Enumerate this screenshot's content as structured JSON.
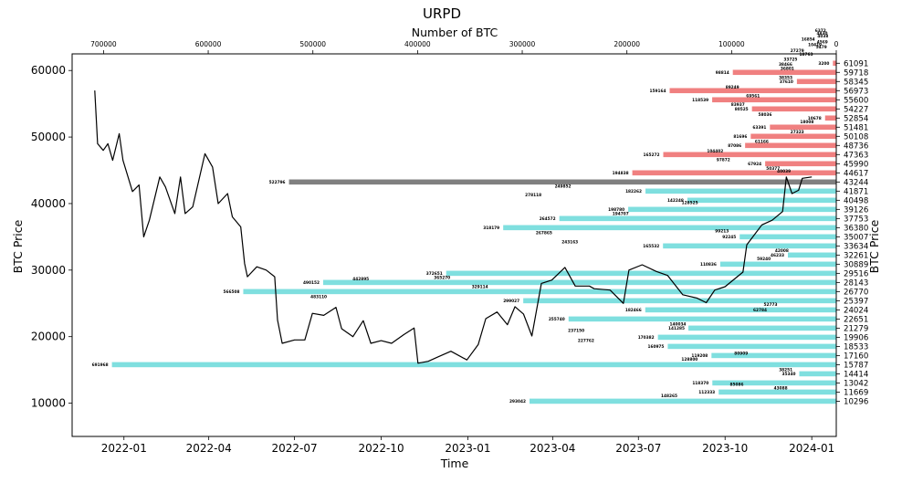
{
  "chart_data": {
    "type": "line",
    "title": "URPD",
    "top_xlabel": "Number of BTC",
    "xlabel": "Time",
    "ylabel_left": "BTC Price",
    "ylabel_right": "BTC Price",
    "ylim": [
      5000,
      62500
    ],
    "yticks": [
      10000,
      20000,
      30000,
      40000,
      50000,
      60000
    ],
    "ytick_labels": [
      "10000",
      "20000",
      "30000",
      "40000",
      "50000",
      "60000"
    ],
    "xtick_dates": [
      "2022-01-01",
      "2022-04-01",
      "2022-07-01",
      "2022-10-01",
      "2023-01-01",
      "2023-04-01",
      "2023-07-01",
      "2023-10-01",
      "2024-01-01"
    ],
    "xtick_labels": [
      "2022-01",
      "2022-04",
      "2022-07",
      "2022-10",
      "2023-01",
      "2023-04",
      "2023-07",
      "2023-10",
      "2024-01"
    ],
    "xlim": [
      "2021-11-07",
      "2024-01-27"
    ],
    "top_xlim": [
      730000,
      0
    ],
    "top_xticks": [
      700000,
      600000,
      500000,
      400000,
      300000,
      200000,
      100000,
      0
    ],
    "top_xtick_labels": [
      "700000",
      "600000",
      "500000",
      "400000",
      "300000",
      "200000",
      "100000",
      "0"
    ],
    "colors": {
      "price_line": "#000000",
      "above_price": "#f08080",
      "below_price": "#7fdfdf",
      "current_bucket": "#808080"
    },
    "current_price_level": 43244,
    "price_series": {
      "name": "BTC Price",
      "points": [
        [
          "2021-12-01",
          57000
        ],
        [
          "2021-12-04",
          49000
        ],
        [
          "2021-12-10",
          48000
        ],
        [
          "2021-12-15",
          49000
        ],
        [
          "2021-12-20",
          46500
        ],
        [
          "2021-12-27",
          50500
        ],
        [
          "2021-12-31",
          46500
        ],
        [
          "2022-01-10",
          41800
        ],
        [
          "2022-01-17",
          42800
        ],
        [
          "2022-01-22",
          35000
        ],
        [
          "2022-01-28",
          37500
        ],
        [
          "2022-02-08",
          44000
        ],
        [
          "2022-02-14",
          42500
        ],
        [
          "2022-02-24",
          38500
        ],
        [
          "2022-03-02",
          44000
        ],
        [
          "2022-03-07",
          38500
        ],
        [
          "2022-03-15",
          39500
        ],
        [
          "2022-03-28",
          47500
        ],
        [
          "2022-04-05",
          45500
        ],
        [
          "2022-04-11",
          40000
        ],
        [
          "2022-04-21",
          41500
        ],
        [
          "2022-04-26",
          38000
        ],
        [
          "2022-05-05",
          36500
        ],
        [
          "2022-05-09",
          31000
        ],
        [
          "2022-05-12",
          29000
        ],
        [
          "2022-05-22",
          30500
        ],
        [
          "2022-06-01",
          30000
        ],
        [
          "2022-06-10",
          29000
        ],
        [
          "2022-06-13",
          22500
        ],
        [
          "2022-06-18",
          19000
        ],
        [
          "2022-07-01",
          19500
        ],
        [
          "2022-07-12",
          19500
        ],
        [
          "2022-07-20",
          23500
        ],
        [
          "2022-08-01",
          23200
        ],
        [
          "2022-08-14",
          24400
        ],
        [
          "2022-08-20",
          21200
        ],
        [
          "2022-09-01",
          20000
        ],
        [
          "2022-09-12",
          22400
        ],
        [
          "2022-09-20",
          19000
        ],
        [
          "2022-10-01",
          19400
        ],
        [
          "2022-10-12",
          19000
        ],
        [
          "2022-10-25",
          20300
        ],
        [
          "2022-11-05",
          21300
        ],
        [
          "2022-11-09",
          16000
        ],
        [
          "2022-11-20",
          16300
        ],
        [
          "2022-12-01",
          17000
        ],
        [
          "2022-12-14",
          17800
        ],
        [
          "2022-12-31",
          16500
        ],
        [
          "2023-01-12",
          18800
        ],
        [
          "2023-01-20",
          22700
        ],
        [
          "2023-02-01",
          23700
        ],
        [
          "2023-02-12",
          21800
        ],
        [
          "2023-02-20",
          24500
        ],
        [
          "2023-03-01",
          23400
        ],
        [
          "2023-03-10",
          20100
        ],
        [
          "2023-03-20",
          28000
        ],
        [
          "2023-03-31",
          28500
        ],
        [
          "2023-04-14",
          30400
        ],
        [
          "2023-04-25",
          27600
        ],
        [
          "2023-05-10",
          27600
        ],
        [
          "2023-05-15",
          27200
        ],
        [
          "2023-06-01",
          27000
        ],
        [
          "2023-06-15",
          25000
        ],
        [
          "2023-06-21",
          30000
        ],
        [
          "2023-07-05",
          30800
        ],
        [
          "2023-07-20",
          29800
        ],
        [
          "2023-08-01",
          29200
        ],
        [
          "2023-08-17",
          26300
        ],
        [
          "2023-09-01",
          25800
        ],
        [
          "2023-09-11",
          25100
        ],
        [
          "2023-09-20",
          27000
        ],
        [
          "2023-10-01",
          27500
        ],
        [
          "2023-10-20",
          29700
        ],
        [
          "2023-10-24",
          33800
        ],
        [
          "2023-11-09",
          36800
        ],
        [
          "2023-11-20",
          37500
        ],
        [
          "2023-12-01",
          38800
        ],
        [
          "2023-12-05",
          44000
        ],
        [
          "2023-12-11",
          41500
        ],
        [
          "2023-12-18",
          42000
        ],
        [
          "2023-12-22",
          43800
        ],
        [
          "2024-01-01",
          44000
        ]
      ]
    },
    "urpd_buckets": [
      {
        "price": 61091,
        "btc": 3200,
        "label": "3200"
      },
      {
        "price": 59718,
        "btc": 98814,
        "label": "98814"
      },
      {
        "price": 58345,
        "btc": 37610,
        "label": "37610"
      },
      {
        "price": 56973,
        "btc": 159164,
        "label": "159164"
      },
      {
        "price": 55600,
        "btc": 118539,
        "label": "118539"
      },
      {
        "price": 54227,
        "btc": 80525,
        "label": "80525"
      },
      {
        "price": 52854,
        "btc": 10678,
        "label": "10678"
      },
      {
        "price": 51481,
        "btc": 63391,
        "label": "63391"
      },
      {
        "price": 50108,
        "btc": 81696,
        "label": "81696"
      },
      {
        "price": 48736,
        "btc": 87086,
        "label": "87086"
      },
      {
        "price": 47363,
        "btc": 165272,
        "label": "165272"
      },
      {
        "price": 45990,
        "btc": 67924,
        "label": "67924"
      },
      {
        "price": 44617,
        "btc": 194838,
        "label": "194838"
      },
      {
        "price": 43244,
        "btc": 522796,
        "label": "522796"
      },
      {
        "price": 41871,
        "btc": 182262,
        "label": "182262"
      },
      {
        "price": 40498,
        "btc": 142248,
        "label": "142248"
      },
      {
        "price": 39126,
        "btc": 198780,
        "label": "198780"
      },
      {
        "price": 37753,
        "btc": 264572,
        "label": "264572"
      },
      {
        "price": 36380,
        "btc": 318179,
        "label": "318179"
      },
      {
        "price": 35007,
        "btc": 92245,
        "label": "92245"
      },
      {
        "price": 33634,
        "btc": 165532,
        "label": "165532"
      },
      {
        "price": 32261,
        "btc": 46233,
        "label": "46233"
      },
      {
        "price": 30889,
        "btc": 110836,
        "label": "110836"
      },
      {
        "price": 29516,
        "btc": 372651,
        "label": "372651"
      },
      {
        "price": 28143,
        "btc": 490152,
        "label": "490152"
      },
      {
        "price": 26770,
        "btc": 566508,
        "label": "566508"
      },
      {
        "price": 25397,
        "btc": 299027,
        "label": "299027"
      },
      {
        "price": 24024,
        "btc": 182466,
        "label": "182466"
      },
      {
        "price": 22651,
        "btc": 255740,
        "label": "255740"
      },
      {
        "price": 21279,
        "btc": 141285,
        "label": "141285"
      },
      {
        "price": 19906,
        "btc": 170382,
        "label": "170382"
      },
      {
        "price": 18533,
        "btc": 160975,
        "label": "160975"
      },
      {
        "price": 17160,
        "btc": 119208,
        "label": "119208"
      },
      {
        "price": 15787,
        "btc": 691968,
        "label": "691968"
      },
      {
        "price": 14414,
        "btc": 35340,
        "label": "35340"
      },
      {
        "price": 13042,
        "btc": 118370,
        "label": "118370"
      },
      {
        "price": 11669,
        "btc": 112333,
        "label": "112333"
      },
      {
        "price": 10296,
        "btc": 293042,
        "label": "293042"
      }
    ],
    "extra_labels": [
      {
        "price": 61700,
        "btc": 33725,
        "label": "33725"
      },
      {
        "price": 60300,
        "btc": 36801,
        "label": "36801"
      },
      {
        "price": 60900,
        "btc": 38466,
        "label": "38466"
      },
      {
        "price": 58950,
        "btc": 38353,
        "label": "38353"
      },
      {
        "price": 57500,
        "btc": 89249,
        "label": "89249"
      },
      {
        "price": 56200,
        "btc": 69561,
        "label": "69561"
      },
      {
        "price": 54900,
        "btc": 83937,
        "label": "83937"
      },
      {
        "price": 53400,
        "btc": 58036,
        "label": "58036"
      },
      {
        "price": 52300,
        "btc": 18008,
        "label": "18008"
      },
      {
        "price": 50800,
        "btc": 27323,
        "label": "27323"
      },
      {
        "price": 49300,
        "btc": 61166,
        "label": "61166"
      },
      {
        "price": 47900,
        "btc": 104402,
        "label": "104402"
      },
      {
        "price": 46600,
        "btc": 97872,
        "label": "97872"
      },
      {
        "price": 45300,
        "btc": 50377,
        "label": "50377"
      },
      {
        "price": 44900,
        "btc": 40039,
        "label": "40039"
      },
      {
        "price": 42600,
        "btc": 249852,
        "label": "249852"
      },
      {
        "price": 41300,
        "btc": 278118,
        "label": "278118"
      },
      {
        "price": 40100,
        "btc": 128525,
        "label": "128525"
      },
      {
        "price": 38500,
        "btc": 194707,
        "label": "194707"
      },
      {
        "price": 35600,
        "btc": 267865,
        "label": "267865"
      },
      {
        "price": 35900,
        "btc": 99213,
        "label": "99213"
      },
      {
        "price": 34200,
        "btc": 243163,
        "label": "243163"
      },
      {
        "price": 32900,
        "btc": 42008,
        "label": "42008"
      },
      {
        "price": 31700,
        "btc": 59240,
        "label": "59240"
      },
      {
        "price": 28900,
        "btc": 365270,
        "label": "365270"
      },
      {
        "price": 28700,
        "btc": 442895,
        "label": "442895"
      },
      {
        "price": 27500,
        "btc": 329114,
        "label": "329114"
      },
      {
        "price": 26000,
        "btc": 483110,
        "label": "483110"
      },
      {
        "price": 24800,
        "btc": 52773,
        "label": "52773"
      },
      {
        "price": 24000,
        "btc": 62784,
        "label": "62784"
      },
      {
        "price": 21900,
        "btc": 140034,
        "label": "140034"
      },
      {
        "price": 20900,
        "btc": 237150,
        "label": "237150"
      },
      {
        "price": 19400,
        "btc": 227762,
        "label": "227762"
      },
      {
        "price": 17500,
        "btc": 80909,
        "label": "80909"
      },
      {
        "price": 16600,
        "btc": 128800,
        "label": "128800"
      },
      {
        "price": 15000,
        "btc": 38251,
        "label": "38251"
      },
      {
        "price": 12800,
        "btc": 85086,
        "label": "85086"
      },
      {
        "price": 12300,
        "btc": 43088,
        "label": "43088"
      },
      {
        "price": 11100,
        "btc": 148265,
        "label": "148265"
      },
      {
        "price": 62400,
        "btc": 18763,
        "label": "18763"
      },
      {
        "price": 62950,
        "btc": 27279,
        "label": "27279"
      },
      {
        "price": 63500,
        "btc": 5479,
        "label": "5479"
      },
      {
        "price": 63900,
        "btc": 10419,
        "label": "10419"
      },
      {
        "price": 64300,
        "btc": 4569,
        "label": "4569"
      },
      {
        "price": 64700,
        "btc": 16854,
        "label": "16854"
      },
      {
        "price": 65200,
        "btc": 4038,
        "label": "4038"
      },
      {
        "price": 65600,
        "btc": 4830,
        "label": "4830"
      },
      {
        "price": 66000,
        "btc": 6372,
        "label": "6372"
      }
    ]
  }
}
